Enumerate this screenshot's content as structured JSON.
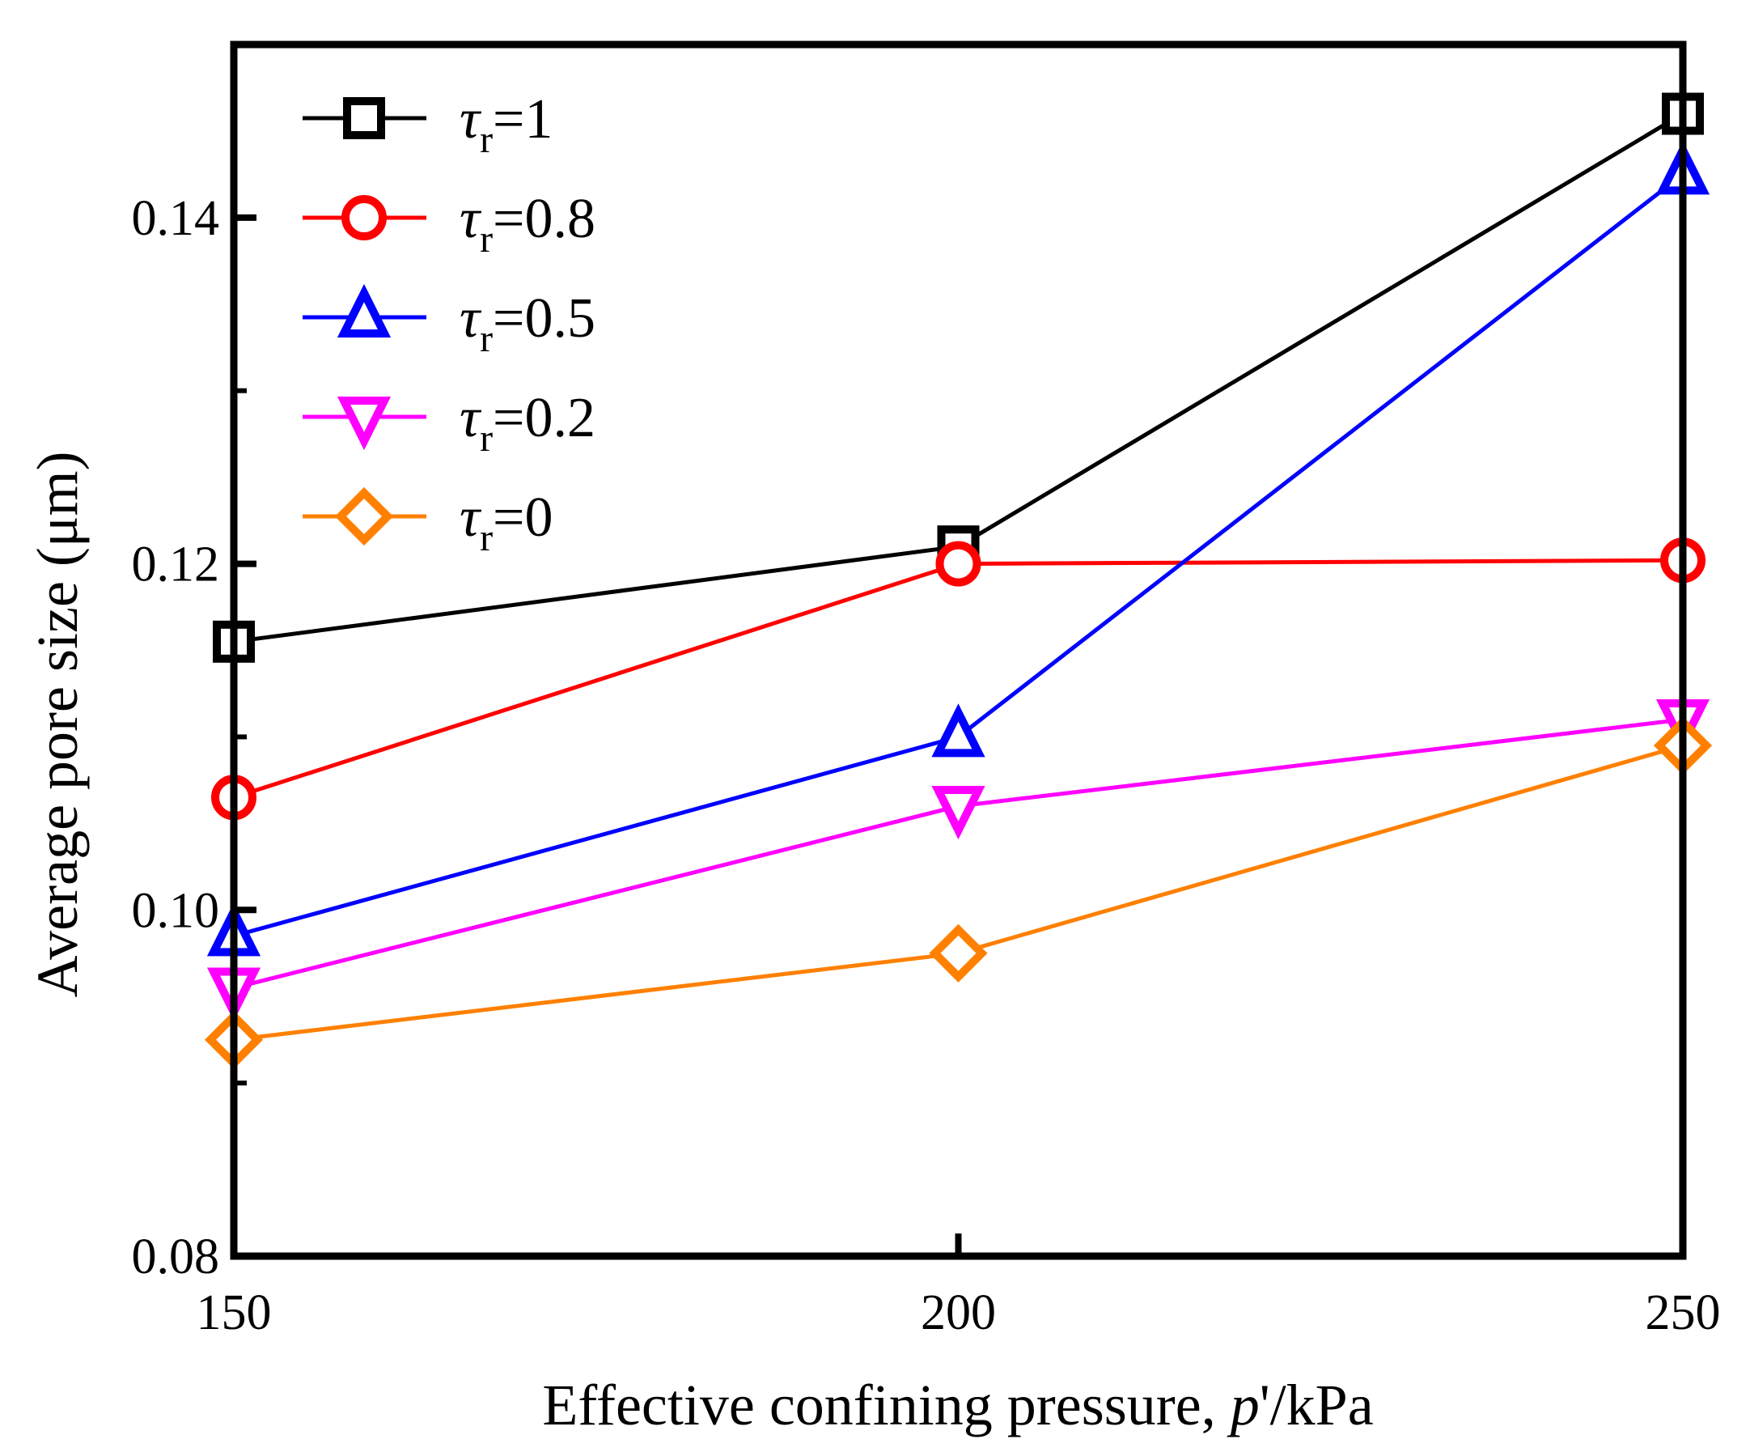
{
  "chart_data": {
    "type": "line",
    "title": "",
    "xlabel": "Effective confining pressure, p'/kPa",
    "xlabel_parts": {
      "prefix": "Effective confining pressure, ",
      "var": "p",
      "suffix": "'/kPa"
    },
    "ylabel": "Average pore size (μm)",
    "x": [
      150,
      200,
      250
    ],
    "xlim": [
      150,
      250
    ],
    "ylim": [
      0.08,
      0.15
    ],
    "xticks": [
      "150",
      "200",
      "250"
    ],
    "yticks": [
      "0.08",
      "0.10",
      "0.12",
      "0.14"
    ],
    "grid": false,
    "legend_position": "top-left",
    "series": [
      {
        "name": "τr=1",
        "symbol": "τ",
        "sub": "r",
        "value_label": "=1",
        "color": "#000000",
        "marker": "square",
        "values": [
          0.1155,
          0.121,
          0.146
        ]
      },
      {
        "name": "τr=0.8",
        "symbol": "τ",
        "sub": "r",
        "value_label": "=0.8",
        "color": "#ff0000",
        "marker": "circle",
        "values": [
          0.1065,
          0.12,
          0.1202
        ]
      },
      {
        "name": "τr=0.5",
        "symbol": "τ",
        "sub": "r",
        "value_label": "=0.5",
        "color": "#0000ff",
        "marker": "triangle-up",
        "values": [
          0.0985,
          0.11,
          0.1425
        ]
      },
      {
        "name": "τr=0.2",
        "symbol": "τ",
        "sub": "r",
        "value_label": "=0.2",
        "color": "#ff00ff",
        "marker": "triangle-down",
        "values": [
          0.0955,
          0.106,
          0.111
        ]
      },
      {
        "name": "τr=0",
        "symbol": "τ",
        "sub": "r",
        "value_label": "=0",
        "color": "#ff8000",
        "marker": "diamond",
        "values": [
          0.0925,
          0.0975,
          0.1095
        ]
      }
    ]
  }
}
